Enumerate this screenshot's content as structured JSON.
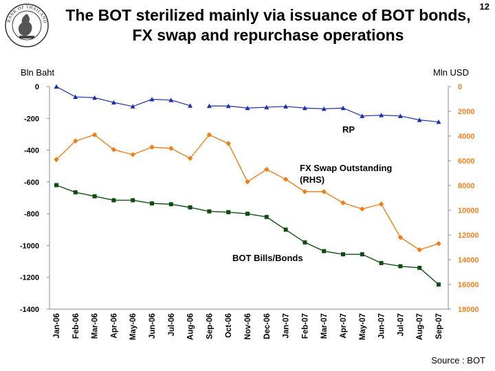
{
  "page": {
    "title_line1": "The BOT sterilized mainly via issuance of BOT bonds,",
    "title_line2": "FX swap and repurchase operations",
    "page_number": "12",
    "left_unit": "Bln Baht",
    "right_unit": "Mln USD",
    "source": "Source : BOT",
    "logo_text": "BANK OF THAILAND"
  },
  "chart_data": {
    "type": "line",
    "categories": [
      "Jan-06",
      "Feb-06",
      "Mar-06",
      "Apr-06",
      "May-06",
      "Jun-06",
      "Jul-06",
      "Aug-06",
      "Sep-06",
      "Oct-06",
      "Nov-06",
      "Dec-06",
      "Jan-07",
      "Feb-07",
      "Mar-07",
      "Apr-07",
      "May-07",
      "Jun-07",
      "Jul-07",
      "Aug-07",
      "Sep-07"
    ],
    "y_left": {
      "label": "Bln Baht",
      "min": -1400,
      "max": 0,
      "ticks": [
        0,
        -200,
        -400,
        -600,
        -800,
        -1000,
        -1200,
        -1400
      ]
    },
    "y_right": {
      "label": "Mln USD",
      "min": 0,
      "max": 18000,
      "inverted": true,
      "ticks": [
        0,
        2000,
        4000,
        6000,
        8000,
        10000,
        12000,
        14000,
        16000,
        18000
      ]
    },
    "series": [
      {
        "name": "RP",
        "axis": "left",
        "marker": "triangle",
        "color": "#1f2fa8",
        "values": [
          0,
          -65,
          -70,
          -100,
          -125,
          -80,
          -85,
          -120,
          -122,
          -122,
          -135,
          -130,
          -125,
          -135,
          -140,
          -135,
          -185,
          -180,
          -185,
          -210,
          -222
        ]
      },
      {
        "name": "FX Swap Outstanding (RHS)",
        "axis": "right",
        "marker": "diamond",
        "color": "#e8801e",
        "values": [
          5900,
          4400,
          3900,
          5100,
          5500,
          4900,
          5000,
          5800,
          3900,
          4600,
          7700,
          6700,
          7500,
          8500,
          8500,
          9400,
          9900,
          9500,
          12200,
          13200,
          12700
        ]
      },
      {
        "name": "BOT Bills/Bonds",
        "axis": "left",
        "marker": "square",
        "color": "#0e4d12",
        "values": [
          -620,
          -665,
          -690,
          -715,
          -715,
          -735,
          -740,
          -760,
          -785,
          -790,
          -800,
          -820,
          -900,
          -980,
          -1035,
          -1055,
          -1055,
          -1110,
          -1130,
          -1140,
          -1245
        ]
      }
    ],
    "annotations": [
      "RP",
      "FX Swap Outstanding (RHS)",
      "BOT Bills/Bonds"
    ]
  }
}
